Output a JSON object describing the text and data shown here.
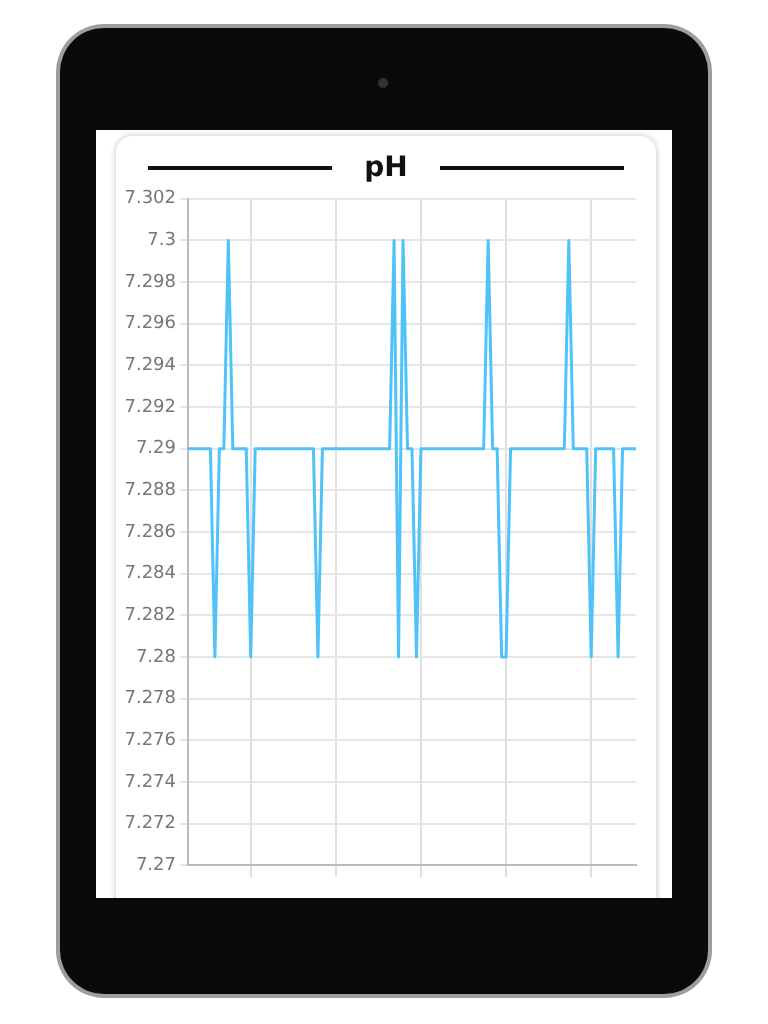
{
  "chart_data": {
    "type": "line",
    "title": "pH",
    "categories": [
      null,
      null,
      null,
      null,
      null,
      null,
      null,
      null,
      null,
      null,
      null,
      null,
      null,
      null,
      null,
      null,
      null,
      null,
      null,
      null,
      null,
      null,
      null,
      null,
      null,
      null,
      null,
      null,
      null,
      null,
      null,
      null,
      null,
      null,
      null,
      null,
      null,
      null,
      null,
      null,
      null,
      null,
      null,
      null,
      null,
      null,
      null,
      null,
      null,
      null,
      null,
      null,
      null,
      null,
      null,
      null,
      null,
      null,
      null,
      null,
      null,
      null,
      null,
      null,
      null,
      null,
      null,
      null,
      null,
      null,
      null,
      null,
      null,
      null,
      null,
      null,
      null,
      null,
      null,
      null,
      null,
      null,
      null,
      null,
      null,
      null,
      null,
      null,
      null,
      null,
      null,
      null,
      null,
      null,
      null,
      null,
      null,
      null,
      null,
      null,
      null
    ],
    "series": [
      {
        "color": "#4fc3f7",
        "values": [
          7.29,
          7.29,
          7.29,
          7.29,
          7.29,
          7.29,
          7.28,
          7.29,
          7.29,
          7.3,
          7.29,
          7.29,
          7.29,
          7.29,
          7.28,
          7.29,
          7.29,
          7.29,
          7.29,
          7.29,
          7.29,
          7.29,
          7.29,
          7.29,
          7.29,
          7.29,
          7.29,
          7.29,
          7.29,
          7.28,
          7.29,
          7.29,
          7.29,
          7.29,
          7.29,
          7.29,
          7.29,
          7.29,
          7.29,
          7.29,
          7.29,
          7.29,
          7.29,
          7.29,
          7.29,
          7.29,
          7.3,
          7.28,
          7.3,
          7.29,
          7.29,
          7.28,
          7.29,
          7.29,
          7.29,
          7.29,
          7.29,
          7.29,
          7.29,
          7.29,
          7.29,
          7.29,
          7.29,
          7.29,
          7.29,
          7.29,
          7.29,
          7.3,
          7.29,
          7.29,
          7.28,
          7.28,
          7.29,
          7.29,
          7.29,
          7.29,
          7.29,
          7.29,
          7.29,
          7.29,
          7.29,
          7.29,
          7.29,
          7.29,
          7.29,
          7.3,
          7.29,
          7.29,
          7.29,
          7.29,
          7.28,
          7.29,
          7.29,
          7.29,
          7.29,
          7.29,
          7.28,
          7.29,
          7.29,
          7.29,
          7.29
        ]
      }
    ],
    "ylim": [
      7.27,
      7.302
    ],
    "yticks": [
      7.27,
      7.272,
      7.274,
      7.276,
      7.278,
      7.28,
      7.282,
      7.284,
      7.286,
      7.288,
      7.29,
      7.292,
      7.294,
      7.296,
      7.298,
      7.3,
      7.302
    ],
    "grid": true,
    "legend": false,
    "marker": "none",
    "line_style": "solid",
    "tick_labels": "y"
  }
}
